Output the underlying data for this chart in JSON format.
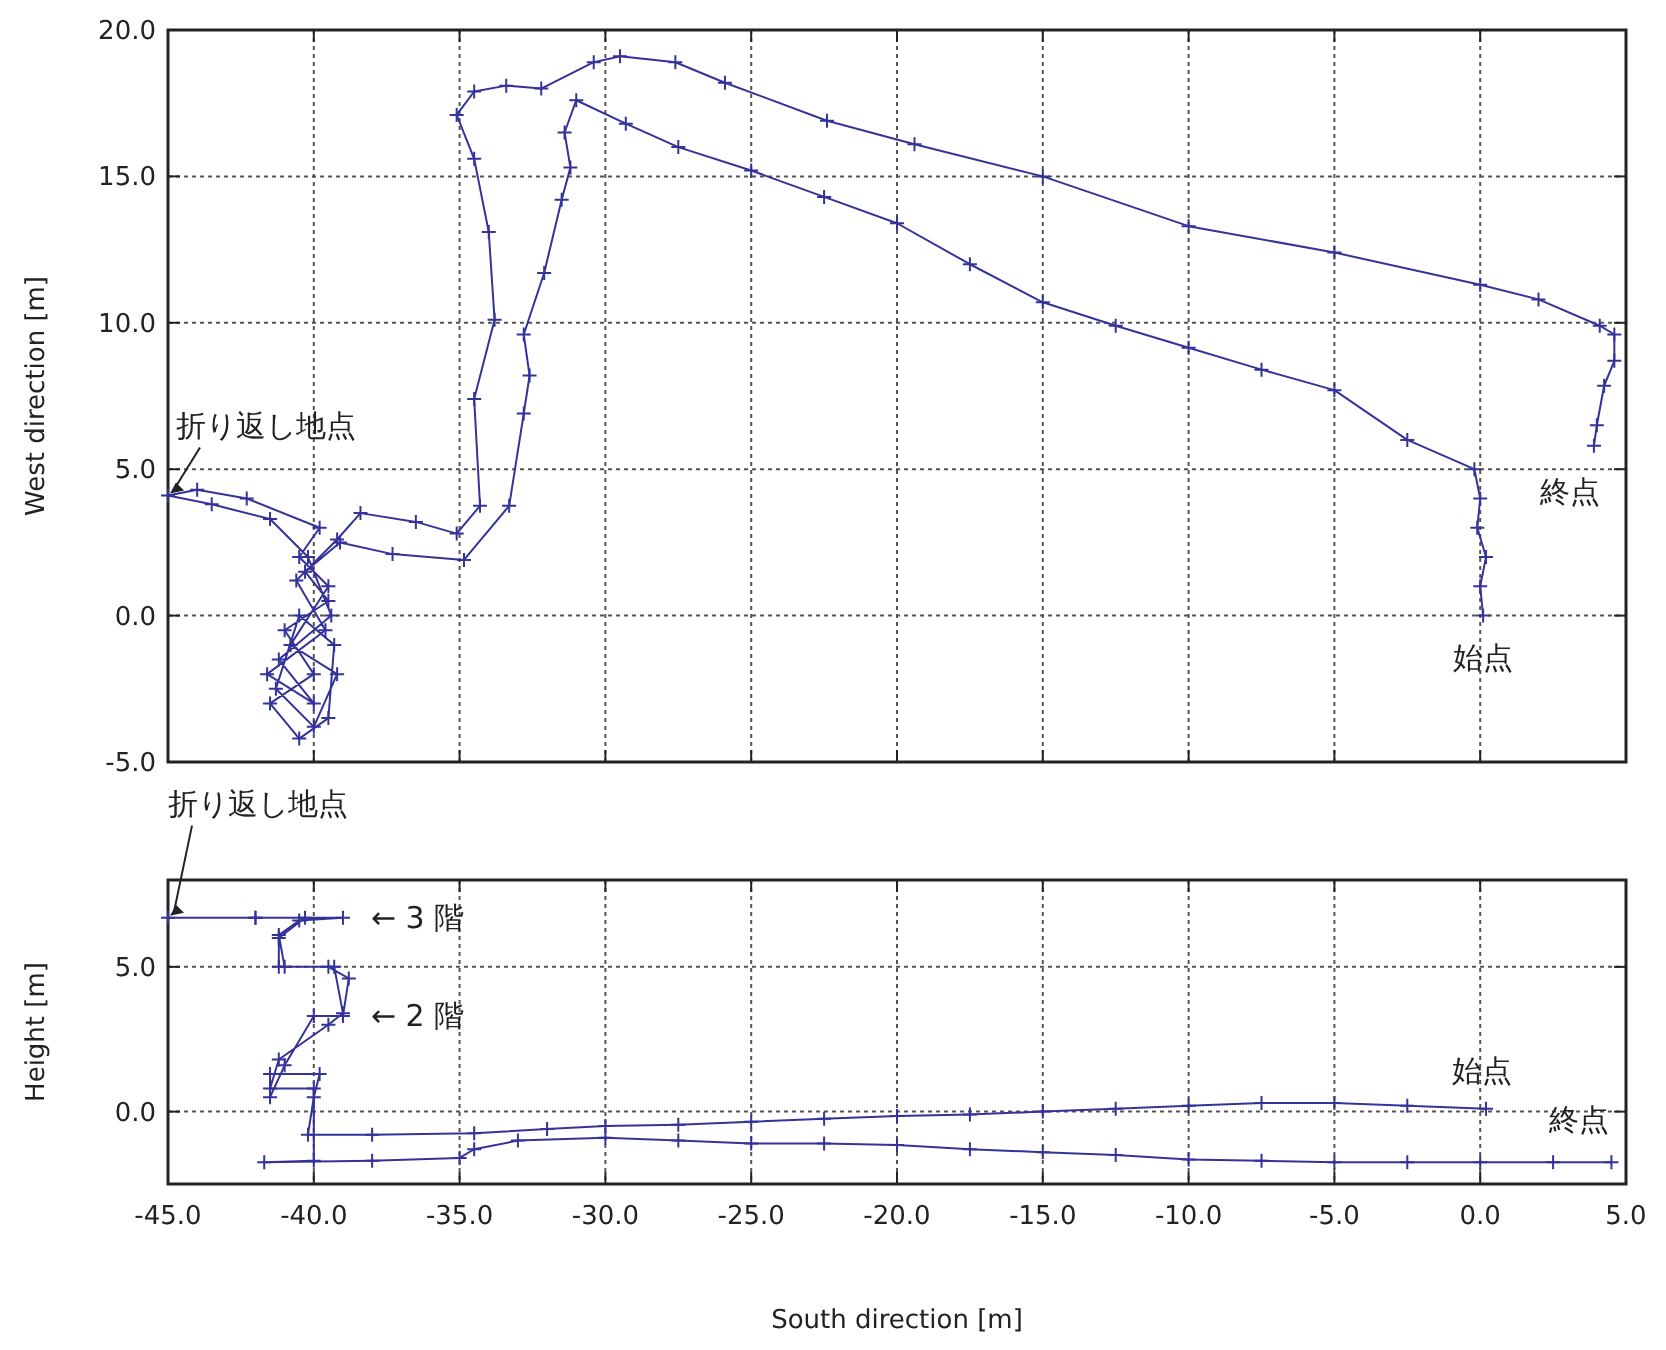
{
  "chart_data": [
    {
      "type": "line",
      "ylabel": "West direction [m]",
      "xlim": [
        -45,
        5
      ],
      "ylim": [
        -5,
        20
      ],
      "xticks": [
        {
          "value": -45,
          "label": null
        },
        {
          "value": -40,
          "label": null
        },
        {
          "value": -35,
          "label": null
        },
        {
          "value": -30,
          "label": null
        },
        {
          "value": -25,
          "label": null
        },
        {
          "value": -20,
          "label": null
        },
        {
          "value": -15,
          "label": null
        },
        {
          "value": -10,
          "label": null
        },
        {
          "value": -5,
          "label": null
        },
        {
          "value": 0,
          "label": null
        },
        {
          "value": 5,
          "label": null
        }
      ],
      "yticks": [
        {
          "value": -5,
          "label": "-5.0"
        },
        {
          "value": 0,
          "label": "0.0"
        },
        {
          "value": 5,
          "label": "5.0"
        },
        {
          "value": 10,
          "label": "10.0"
        },
        {
          "value": 15,
          "label": "15.0"
        },
        {
          "value": 20,
          "label": "20.0"
        }
      ],
      "tick_labels": "y",
      "grid": true,
      "marker": "cross",
      "line_style": "solid",
      "series": [
        {
          "color": "#33339a",
          "x": [
            0.1,
            0.0,
            0.2,
            -0.1,
            0.0,
            -0.2,
            -2.5,
            -5.0,
            -7.5,
            -10.0,
            -12.5,
            -15.0,
            -17.5,
            -20.0,
            -22.5,
            -25.0,
            -27.5,
            -29.3,
            -31.0,
            -31.4,
            -31.2,
            -31.5,
            -32.1,
            -32.8,
            -32.6,
            -32.8,
            -33.3,
            -34.85,
            -37.3,
            -39.1,
            -40.3,
            -39.5,
            -41.0,
            -40.0,
            -41.5,
            -40.5,
            -39.5,
            -39.3,
            -40.5,
            -41.3,
            -40.0,
            -39.2,
            -40.8,
            -39.5,
            -40.5,
            -39.8,
            -42.3,
            -44.0,
            -45.0,
            -43.5,
            -41.5,
            -40.2,
            -39.4,
            -41.2,
            -40.0,
            -41.6,
            -39.6,
            -40.6,
            -39.2,
            -38.4,
            -36.5,
            -35.1,
            -34.3,
            -34.5,
            -33.8,
            -34.0,
            -34.5,
            -35.1,
            -34.5,
            -33.4,
            -32.2,
            -30.4,
            -29.5,
            -27.6,
            -25.9,
            -22.4,
            -19.4,
            -15.0,
            -10.0,
            -5.0,
            0.0,
            2.0,
            4.1,
            4.6,
            4.6,
            4.25,
            4.0,
            3.9
          ],
          "values": [
            0.0,
            1.0,
            2.0,
            3.0,
            4.0,
            5.0,
            6.0,
            7.7,
            8.4,
            9.15,
            9.9,
            10.7,
            12.0,
            13.4,
            14.3,
            15.2,
            16.0,
            16.8,
            17.6,
            16.5,
            15.3,
            14.2,
            11.7,
            9.6,
            8.2,
            6.9,
            3.75,
            1.9,
            2.1,
            2.5,
            1.5,
            0.5,
            -0.5,
            -2.0,
            -3.0,
            -4.2,
            -3.5,
            -1.0,
            0.0,
            -2.5,
            -3.8,
            -2.0,
            -1.0,
            1.0,
            2.0,
            3.0,
            4.0,
            4.3,
            4.1,
            3.8,
            3.3,
            2.0,
            0.0,
            -1.5,
            -3.0,
            -2.0,
            -0.5,
            1.2,
            2.6,
            3.5,
            3.2,
            2.8,
            3.75,
            7.4,
            10.1,
            13.1,
            15.6,
            17.1,
            17.9,
            18.1,
            18.0,
            18.9,
            19.1,
            18.9,
            18.2,
            16.9,
            16.1,
            15.0,
            13.3,
            12.4,
            11.3,
            10.8,
            9.9,
            9.6,
            8.7,
            7.85,
            6.5,
            5.8
          ]
        }
      ],
      "annotations": [
        {
          "text": "折り返し地点",
          "x": -45,
          "y": 4.1
        },
        {
          "text": "始点",
          "x": 0.1,
          "y": 0.0
        },
        {
          "text": "終点",
          "x": 3.9,
          "y": 5.8
        }
      ]
    },
    {
      "type": "line",
      "xlabel": "South direction [m]",
      "ylabel": "Height [m]",
      "xlim": [
        -45,
        5
      ],
      "ylim": [
        -2.5,
        8
      ],
      "xticks": [
        {
          "value": -45,
          "label": "-45.0"
        },
        {
          "value": -40,
          "label": "-40.0"
        },
        {
          "value": -35,
          "label": "-35.0"
        },
        {
          "value": -30,
          "label": "-30.0"
        },
        {
          "value": -25,
          "label": "-25.0"
        },
        {
          "value": -20,
          "label": "-20.0"
        },
        {
          "value": -15,
          "label": "-15.0"
        },
        {
          "value": -10,
          "label": "-10.0"
        },
        {
          "value": -5,
          "label": "-5.0"
        },
        {
          "value": 0,
          "label": "0.0"
        },
        {
          "value": 5,
          "label": "5.0"
        }
      ],
      "yticks": [
        {
          "value": 0,
          "label": "0.0"
        },
        {
          "value": 5,
          "label": "5.0"
        }
      ],
      "grid": true,
      "marker": "cross",
      "line_style": "solid",
      "series": [
        {
          "color": "#33339a",
          "x": [
            0.2,
            -2.5,
            -5,
            -7.5,
            -10,
            -12.5,
            -15,
            -17.5,
            -20,
            -22.5,
            -25,
            -27.5,
            -30,
            -32,
            -34.5,
            -38,
            -40.2,
            -40,
            -39.8,
            -41.5,
            -41.5,
            -41,
            -40,
            -39,
            -38.8,
            -39.5,
            -41,
            -41.2,
            -40.5,
            -39,
            -42,
            -45,
            -42,
            -40.3,
            -41.2,
            -41.2,
            -39.3,
            -39,
            -39.5,
            -41.2,
            -41.5,
            -40,
            -40,
            -41.7,
            -38,
            -35,
            -34.5,
            -33,
            -30,
            -27.5,
            -25,
            -22.5,
            -20,
            -17.5,
            -15,
            -12.5,
            -10,
            -7.5,
            -5,
            -2.5,
            0,
            2.5,
            4.5
          ],
          "values": [
            0.1,
            0.2,
            0.3,
            0.3,
            0.2,
            0.1,
            0.0,
            -0.1,
            -0.15,
            -0.25,
            -0.35,
            -0.45,
            -0.5,
            -0.6,
            -0.75,
            -0.8,
            -0.8,
            0.5,
            1.3,
            1.3,
            0.5,
            1.6,
            3.3,
            3.3,
            4.6,
            5.0,
            5.0,
            6.1,
            6.6,
            6.7,
            6.7,
            6.7,
            6.7,
            6.7,
            6.0,
            5.0,
            5.0,
            3.4,
            3.0,
            1.8,
            0.8,
            0.8,
            -1.7,
            -1.75,
            -1.7,
            -1.6,
            -1.3,
            -1.0,
            -0.9,
            -1.0,
            -1.1,
            -1.1,
            -1.15,
            -1.3,
            -1.4,
            -1.5,
            -1.65,
            -1.7,
            -1.75,
            -1.75,
            -1.75,
            -1.75,
            -1.75
          ]
        }
      ],
      "annotations": [
        {
          "text": "折り返し地点",
          "x": -45,
          "y": 6.7
        },
        {
          "text": "← 3 階",
          "x": -39,
          "y": 6.7
        },
        {
          "text": "← 2 階",
          "x": -39,
          "y": 3.3
        },
        {
          "text": "始点",
          "x": 0.2,
          "y": 0.1
        },
        {
          "text": "終点",
          "x": 4.5,
          "y": -1.75
        }
      ]
    }
  ]
}
